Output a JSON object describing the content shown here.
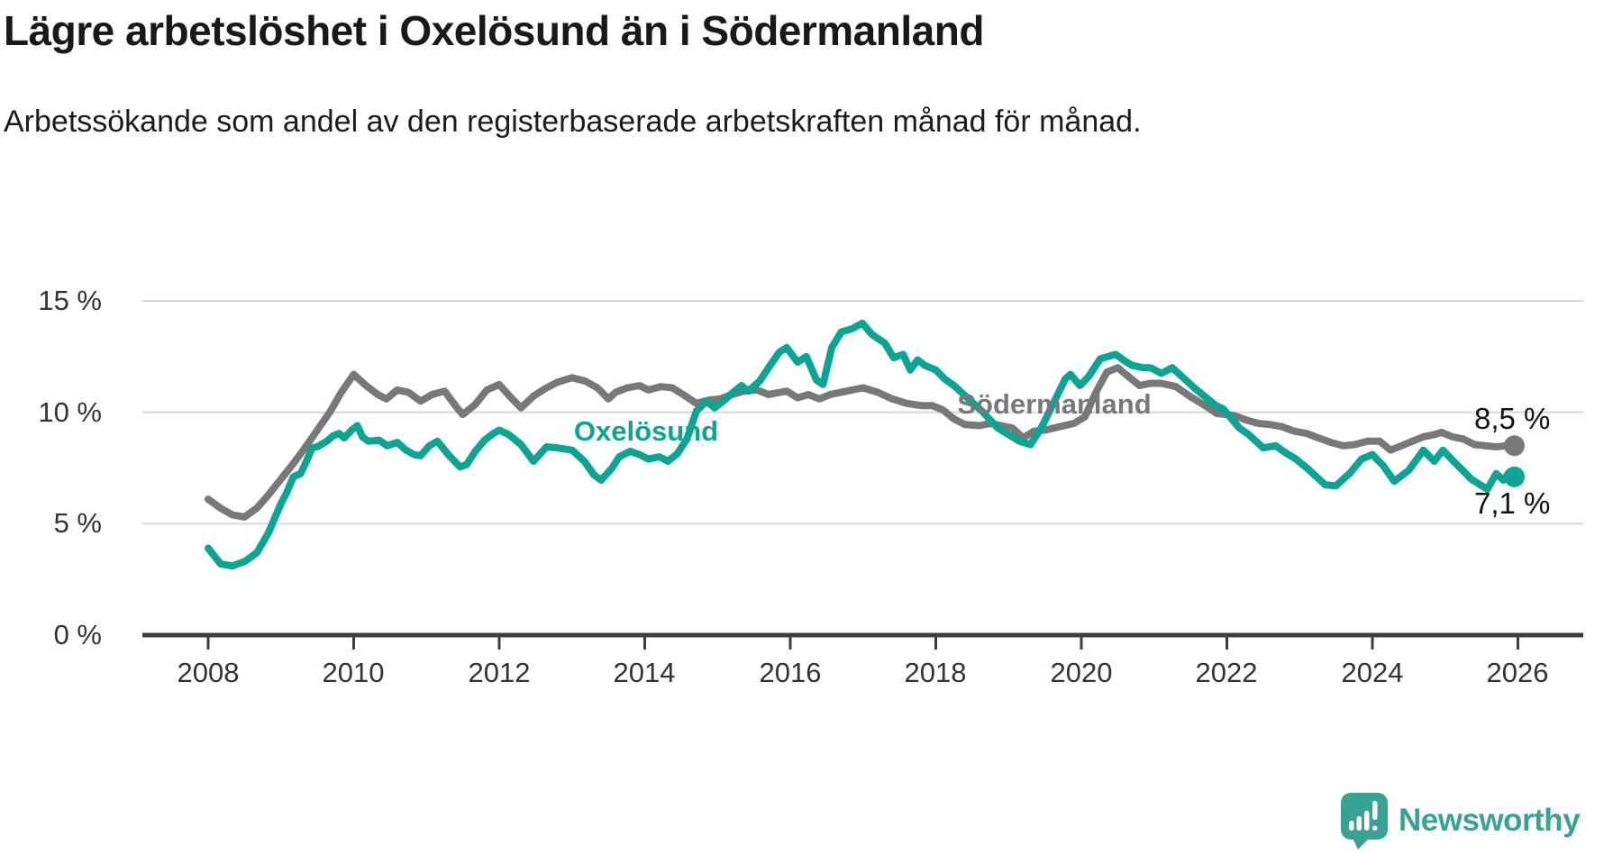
{
  "header": {
    "title": "Lägre arbetslöshet i Oxelösund än i Södermanland",
    "subtitle": "Arbetssökande som andel av den registerbaserade arbetskraften månad för månad."
  },
  "footer": {
    "brand": "Newsworthy"
  },
  "colors": {
    "oxelosund": "#0ea493",
    "sodermanland": "#78787a",
    "grid": "#d8d8d8",
    "axis": "#3d3d3d",
    "value_label": "#111111",
    "brand_teal": "#3aa295"
  },
  "chart_data": {
    "type": "line",
    "title": "Lägre arbetslöshet i Oxelösund än i Södermanland",
    "subtitle": "Arbetssökande som andel av den registerbaserade arbetskraften månad för månad.",
    "xlabel": "",
    "ylabel": "",
    "xlim": [
      2007.1,
      2026.9
    ],
    "ylim": [
      0,
      15.5
    ],
    "grid": "horizontal",
    "legend_position": "inline-labels",
    "x_ticks": [
      2008,
      2010,
      2012,
      2014,
      2016,
      2018,
      2020,
      2022,
      2024,
      2026
    ],
    "x_tick_labels": [
      "2008",
      "2010",
      "2012",
      "2014",
      "2016",
      "2018",
      "2020",
      "2022",
      "2024",
      "2026"
    ],
    "y_ticks": [
      0,
      5,
      10,
      15
    ],
    "y_tick_labels": [
      "0 %",
      "5 %",
      "10 %",
      "15 %"
    ],
    "series": [
      {
        "id": "sodermanland",
        "name": "Södermanland",
        "color": "#78787a",
        "end_label": "8,5 %",
        "last_value": 8.5,
        "points": [
          [
            2008.0,
            6.1
          ],
          [
            2008.17,
            5.7
          ],
          [
            2008.33,
            5.4
          ],
          [
            2008.5,
            5.3
          ],
          [
            2008.67,
            5.7
          ],
          [
            2008.83,
            6.3
          ],
          [
            2009.0,
            7.0
          ],
          [
            2009.17,
            7.7
          ],
          [
            2009.33,
            8.4
          ],
          [
            2009.5,
            9.2
          ],
          [
            2009.67,
            10.0
          ],
          [
            2009.83,
            10.9
          ],
          [
            2010.0,
            11.7
          ],
          [
            2010.17,
            11.2
          ],
          [
            2010.33,
            10.8
          ],
          [
            2010.45,
            10.6
          ],
          [
            2010.6,
            11.0
          ],
          [
            2010.75,
            10.9
          ],
          [
            2010.92,
            10.5
          ],
          [
            2011.08,
            10.8
          ],
          [
            2011.25,
            10.95
          ],
          [
            2011.42,
            10.2
          ],
          [
            2011.5,
            9.9
          ],
          [
            2011.67,
            10.35
          ],
          [
            2011.83,
            11.0
          ],
          [
            2012.0,
            11.25
          ],
          [
            2012.15,
            10.7
          ],
          [
            2012.3,
            10.2
          ],
          [
            2012.48,
            10.75
          ],
          [
            2012.65,
            11.1
          ],
          [
            2012.8,
            11.35
          ],
          [
            2013.0,
            11.55
          ],
          [
            2013.18,
            11.4
          ],
          [
            2013.35,
            11.1
          ],
          [
            2013.5,
            10.6
          ],
          [
            2013.6,
            10.9
          ],
          [
            2013.76,
            11.1
          ],
          [
            2013.93,
            11.2
          ],
          [
            2014.05,
            11.0
          ],
          [
            2014.22,
            11.15
          ],
          [
            2014.38,
            11.1
          ],
          [
            2014.55,
            10.75
          ],
          [
            2014.71,
            10.4
          ],
          [
            2014.88,
            10.55
          ],
          [
            2015.04,
            10.6
          ],
          [
            2015.2,
            10.8
          ],
          [
            2015.37,
            10.95
          ],
          [
            2015.54,
            11.0
          ],
          [
            2015.7,
            10.8
          ],
          [
            2015.95,
            10.95
          ],
          [
            2016.1,
            10.65
          ],
          [
            2016.25,
            10.8
          ],
          [
            2016.4,
            10.6
          ],
          [
            2016.55,
            10.8
          ],
          [
            2016.7,
            10.9
          ],
          [
            2016.85,
            11.0
          ],
          [
            2017.0,
            11.1
          ],
          [
            2017.2,
            10.9
          ],
          [
            2017.4,
            10.6
          ],
          [
            2017.6,
            10.4
          ],
          [
            2017.8,
            10.3
          ],
          [
            2017.95,
            10.3
          ],
          [
            2018.1,
            10.1
          ],
          [
            2018.25,
            9.7
          ],
          [
            2018.4,
            9.45
          ],
          [
            2018.6,
            9.4
          ],
          [
            2018.75,
            9.5
          ],
          [
            2018.9,
            9.4
          ],
          [
            2019.05,
            9.3
          ],
          [
            2019.2,
            8.85
          ],
          [
            2019.35,
            9.15
          ],
          [
            2019.5,
            9.2
          ],
          [
            2019.7,
            9.35
          ],
          [
            2019.9,
            9.5
          ],
          [
            2020.05,
            9.8
          ],
          [
            2020.2,
            10.9
          ],
          [
            2020.35,
            11.8
          ],
          [
            2020.5,
            12.0
          ],
          [
            2020.65,
            11.6
          ],
          [
            2020.8,
            11.2
          ],
          [
            2020.95,
            11.3
          ],
          [
            2021.1,
            11.3
          ],
          [
            2021.3,
            11.15
          ],
          [
            2021.5,
            10.7
          ],
          [
            2021.7,
            10.3
          ],
          [
            2021.86,
            9.95
          ],
          [
            2022.1,
            9.85
          ],
          [
            2022.27,
            9.65
          ],
          [
            2022.43,
            9.5
          ],
          [
            2022.6,
            9.45
          ],
          [
            2022.76,
            9.35
          ],
          [
            2022.93,
            9.15
          ],
          [
            2023.1,
            9.05
          ],
          [
            2023.26,
            8.85
          ],
          [
            2023.43,
            8.65
          ],
          [
            2023.6,
            8.5
          ],
          [
            2023.76,
            8.55
          ],
          [
            2023.93,
            8.7
          ],
          [
            2024.1,
            8.7
          ],
          [
            2024.25,
            8.3
          ],
          [
            2024.4,
            8.5
          ],
          [
            2024.55,
            8.7
          ],
          [
            2024.7,
            8.9
          ],
          [
            2024.85,
            9.0
          ],
          [
            2024.95,
            9.1
          ],
          [
            2025.1,
            8.9
          ],
          [
            2025.25,
            8.8
          ],
          [
            2025.4,
            8.55
          ],
          [
            2025.55,
            8.5
          ],
          [
            2025.7,
            8.45
          ],
          [
            2025.85,
            8.5
          ],
          [
            2025.95,
            8.5
          ]
        ]
      },
      {
        "id": "oxelosund",
        "name": "Oxelösund",
        "color": "#0ea493",
        "end_label": "7,1 %",
        "last_value": 7.1,
        "points": [
          [
            2008.0,
            3.9
          ],
          [
            2008.17,
            3.2
          ],
          [
            2008.33,
            3.1
          ],
          [
            2008.5,
            3.3
          ],
          [
            2008.67,
            3.7
          ],
          [
            2008.83,
            4.6
          ],
          [
            2009.0,
            5.9
          ],
          [
            2009.08,
            6.4
          ],
          [
            2009.17,
            7.1
          ],
          [
            2009.27,
            7.25
          ],
          [
            2009.35,
            7.8
          ],
          [
            2009.43,
            8.4
          ],
          [
            2009.5,
            8.45
          ],
          [
            2009.63,
            8.7
          ],
          [
            2009.72,
            8.95
          ],
          [
            2009.8,
            9.05
          ],
          [
            2009.87,
            8.85
          ],
          [
            2009.97,
            9.2
          ],
          [
            2010.05,
            9.4
          ],
          [
            2010.12,
            8.9
          ],
          [
            2010.2,
            8.7
          ],
          [
            2010.35,
            8.75
          ],
          [
            2010.46,
            8.5
          ],
          [
            2010.6,
            8.65
          ],
          [
            2010.72,
            8.3
          ],
          [
            2010.83,
            8.1
          ],
          [
            2010.92,
            8.05
          ],
          [
            2011.04,
            8.5
          ],
          [
            2011.15,
            8.7
          ],
          [
            2011.3,
            8.1
          ],
          [
            2011.46,
            7.55
          ],
          [
            2011.55,
            7.65
          ],
          [
            2011.67,
            8.25
          ],
          [
            2011.8,
            8.75
          ],
          [
            2011.92,
            9.05
          ],
          [
            2012.0,
            9.2
          ],
          [
            2012.13,
            9.0
          ],
          [
            2012.3,
            8.55
          ],
          [
            2012.47,
            7.8
          ],
          [
            2012.65,
            8.45
          ],
          [
            2012.8,
            8.4
          ],
          [
            2013.0,
            8.3
          ],
          [
            2013.17,
            7.8
          ],
          [
            2013.3,
            7.2
          ],
          [
            2013.4,
            6.95
          ],
          [
            2013.55,
            7.5
          ],
          [
            2013.65,
            8.0
          ],
          [
            2013.8,
            8.25
          ],
          [
            2013.93,
            8.1
          ],
          [
            2014.05,
            7.9
          ],
          [
            2014.2,
            8.0
          ],
          [
            2014.32,
            7.8
          ],
          [
            2014.45,
            8.15
          ],
          [
            2014.58,
            8.8
          ],
          [
            2014.71,
            10.05
          ],
          [
            2014.85,
            10.5
          ],
          [
            2014.96,
            10.2
          ],
          [
            2015.08,
            10.5
          ],
          [
            2015.2,
            10.85
          ],
          [
            2015.33,
            11.2
          ],
          [
            2015.42,
            10.95
          ],
          [
            2015.58,
            11.4
          ],
          [
            2015.7,
            12.0
          ],
          [
            2015.85,
            12.7
          ],
          [
            2015.95,
            12.9
          ],
          [
            2016.1,
            12.25
          ],
          [
            2016.22,
            12.5
          ],
          [
            2016.36,
            11.45
          ],
          [
            2016.45,
            11.25
          ],
          [
            2016.57,
            12.9
          ],
          [
            2016.7,
            13.6
          ],
          [
            2016.85,
            13.75
          ],
          [
            2016.99,
            14.0
          ],
          [
            2017.12,
            13.5
          ],
          [
            2017.3,
            13.1
          ],
          [
            2017.42,
            12.45
          ],
          [
            2017.55,
            12.6
          ],
          [
            2017.65,
            11.9
          ],
          [
            2017.75,
            12.35
          ],
          [
            2017.85,
            12.1
          ],
          [
            2018.0,
            11.9
          ],
          [
            2018.12,
            11.5
          ],
          [
            2018.25,
            11.2
          ],
          [
            2018.45,
            10.6
          ],
          [
            2018.65,
            10.0
          ],
          [
            2018.85,
            9.3
          ],
          [
            2019.0,
            9.0
          ],
          [
            2019.15,
            8.7
          ],
          [
            2019.3,
            8.55
          ],
          [
            2019.45,
            9.3
          ],
          [
            2019.6,
            10.3
          ],
          [
            2019.78,
            11.5
          ],
          [
            2019.85,
            11.7
          ],
          [
            2019.98,
            11.2
          ],
          [
            2020.1,
            11.6
          ],
          [
            2020.26,
            12.4
          ],
          [
            2020.47,
            12.6
          ],
          [
            2020.6,
            12.3
          ],
          [
            2020.7,
            12.1
          ],
          [
            2020.85,
            12.0
          ],
          [
            2020.95,
            12.0
          ],
          [
            2021.1,
            11.75
          ],
          [
            2021.25,
            12.0
          ],
          [
            2021.4,
            11.55
          ],
          [
            2021.55,
            11.1
          ],
          [
            2021.7,
            10.7
          ],
          [
            2021.85,
            10.3
          ],
          [
            2021.95,
            10.15
          ],
          [
            2022.17,
            9.3
          ],
          [
            2022.3,
            9.0
          ],
          [
            2022.5,
            8.4
          ],
          [
            2022.67,
            8.5
          ],
          [
            2022.8,
            8.2
          ],
          [
            2022.95,
            7.9
          ],
          [
            2023.1,
            7.5
          ],
          [
            2023.35,
            6.75
          ],
          [
            2023.5,
            6.7
          ],
          [
            2023.7,
            7.3
          ],
          [
            2023.85,
            7.9
          ],
          [
            2024.0,
            8.1
          ],
          [
            2024.15,
            7.6
          ],
          [
            2024.3,
            6.9
          ],
          [
            2024.5,
            7.4
          ],
          [
            2024.7,
            8.3
          ],
          [
            2024.85,
            7.8
          ],
          [
            2024.97,
            8.3
          ],
          [
            2025.1,
            7.85
          ],
          [
            2025.24,
            7.4
          ],
          [
            2025.36,
            7.0
          ],
          [
            2025.48,
            6.75
          ],
          [
            2025.58,
            6.55
          ],
          [
            2025.7,
            7.25
          ],
          [
            2025.8,
            6.95
          ],
          [
            2025.88,
            7.3
          ],
          [
            2025.95,
            7.1
          ]
        ]
      }
    ]
  }
}
